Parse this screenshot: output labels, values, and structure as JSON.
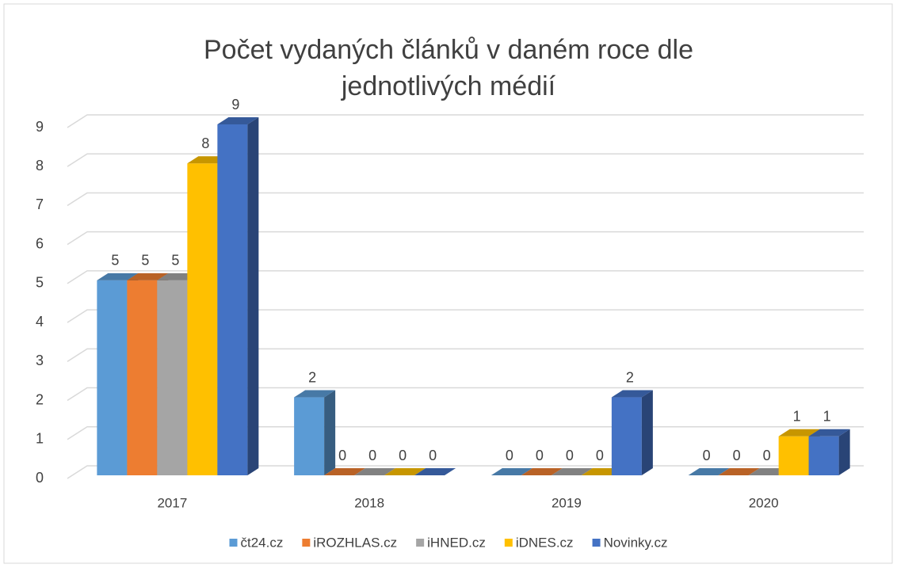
{
  "chart_data": {
    "type": "bar3d",
    "title": "Počet vydaných článků v daném roce dle jednotlivých médií",
    "categories": [
      "2017",
      "2018",
      "2019",
      "2020"
    ],
    "series": [
      {
        "name": "čt24.cz",
        "color": "#5b9bd5",
        "values": [
          5,
          2,
          0,
          0
        ]
      },
      {
        "name": "iROZHLAS.cz",
        "color": "#ed7d31",
        "values": [
          5,
          0,
          0,
          0
        ]
      },
      {
        "name": "iHNED.cz",
        "color": "#a5a5a5",
        "values": [
          5,
          0,
          0,
          0
        ]
      },
      {
        "name": "iDNES.cz",
        "color": "#ffc000",
        "values": [
          8,
          0,
          0,
          1
        ]
      },
      {
        "name": "Novinky.cz",
        "color": "#4472c4",
        "values": [
          9,
          0,
          2,
          1
        ]
      }
    ],
    "ylim": [
      0,
      9
    ],
    "yticks": [
      0,
      1,
      2,
      3,
      4,
      5,
      6,
      7,
      8,
      9
    ],
    "grid": true,
    "legend": "bottom"
  }
}
